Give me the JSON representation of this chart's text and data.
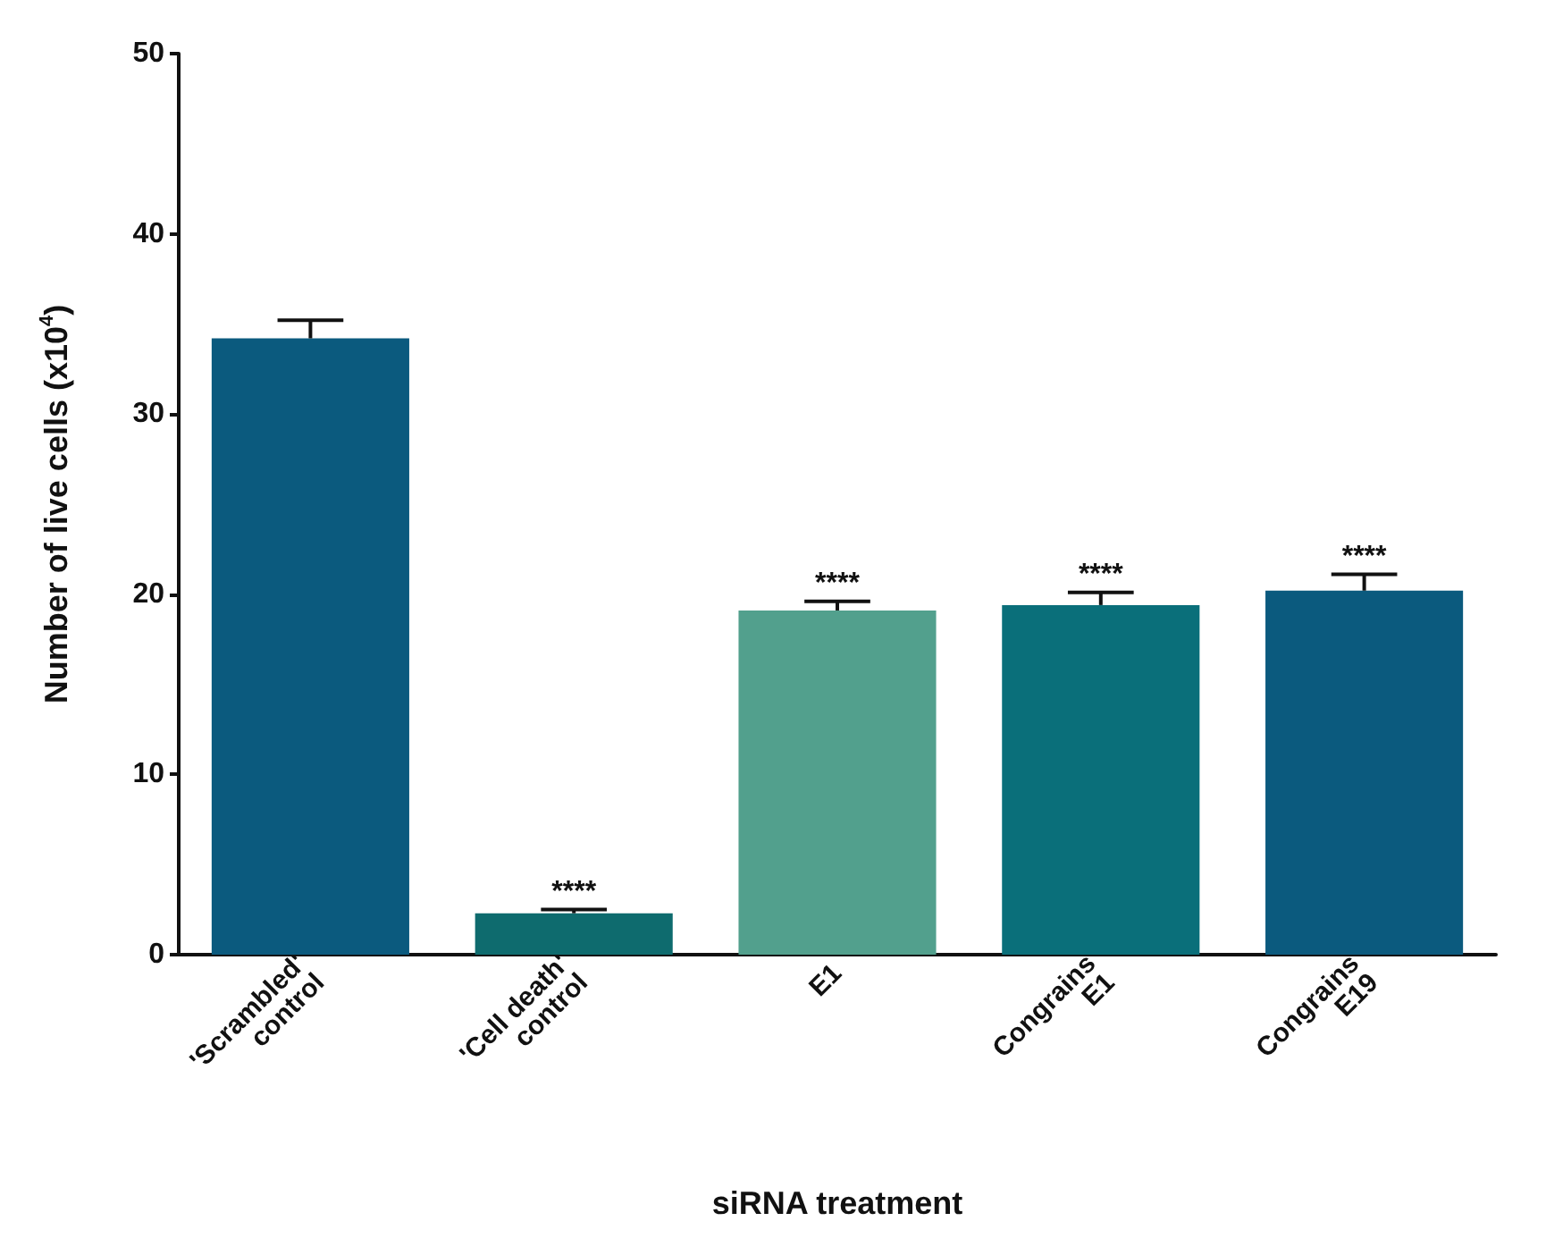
{
  "chart_data": {
    "type": "bar",
    "xlabel": "siRNA treatment",
    "ylabel": "Number of live cells (x10$^{4}$)",
    "categories": [
      "'Scrambled' control",
      "'Cell death' control",
      "E1",
      "Congrains E1",
      "Congrains E19"
    ],
    "values": [
      34.2,
      2.3,
      19.1,
      19.4,
      20.2
    ],
    "colors": [
      "#0b5a7e",
      "#0e6b6e",
      "#52a08d",
      "#0a6f7a",
      "#0b5a7e"
    ],
    "errors": [
      [
        34.2,
        35.2
      ],
      [
        2.3,
        2.5
      ],
      [
        19.1,
        19.6
      ],
      [
        19.4,
        20.1
      ],
      [
        20.2,
        21.1
      ]
    ],
    "annotations": [
      {
        "text": "****",
        "x": "'Cell death' control",
        "y": 2.5
      },
      {
        "text": "****",
        "x": "E1",
        "y": 19.6
      },
      {
        "text": "****",
        "x": "Congrains E1",
        "y": 20.1
      },
      {
        "text": "****",
        "x": "Congrains E19",
        "y": 21.1
      }
    ],
    "ylim": [
      0,
      50
    ],
    "yticks": [
      0,
      10,
      20,
      30,
      40,
      50
    ],
    "grid": false
  }
}
